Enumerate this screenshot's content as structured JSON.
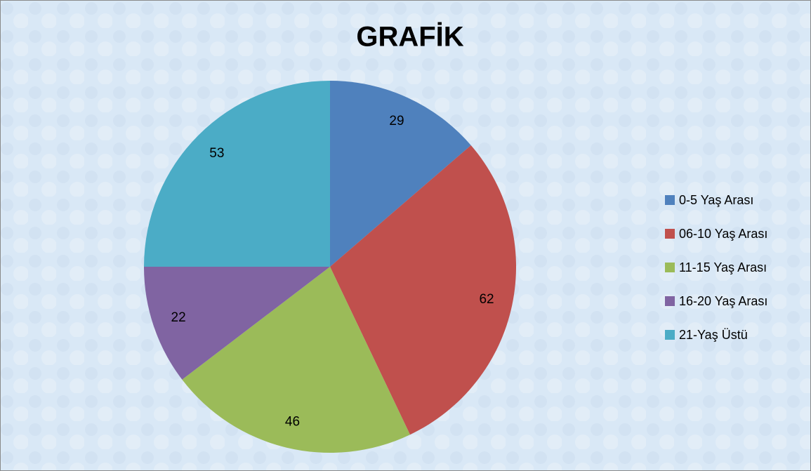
{
  "chart_data": {
    "type": "pie",
    "title": "GRAFİK",
    "categories": [
      "0-5 Yaş Arası",
      "06-10 Yaş Arası",
      "11-15 Yaş Arası",
      "16-20 Yaş Arası",
      "21-Yaş Üstü"
    ],
    "values": [
      29,
      62,
      46,
      22,
      53
    ],
    "colors": [
      "#4f81bd",
      "#c0504d",
      "#9bbb59",
      "#8064a2",
      "#4bacc6"
    ],
    "legend": "right"
  }
}
